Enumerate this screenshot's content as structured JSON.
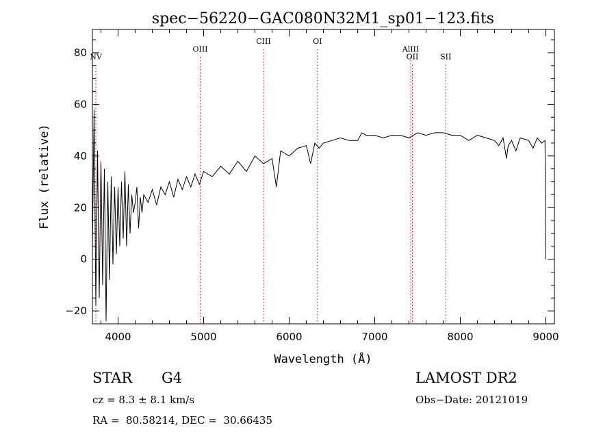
{
  "chart_data": {
    "type": "line",
    "title": "spec−56220−GAC080N32M1_sp01−123.fits",
    "xlabel": "Wavelength (Å)",
    "ylabel": "Flux (relative)",
    "xlim": [
      3700,
      9100
    ],
    "ylim": [
      -25,
      89
    ],
    "x_ticks": [
      4000,
      5000,
      6000,
      7000,
      8000,
      9000
    ],
    "y_ticks": [
      -20,
      0,
      20,
      40,
      60,
      80
    ],
    "x_tick_labels": [
      "4000",
      "5000",
      "6000",
      "7000",
      "8000",
      "9000"
    ],
    "y_tick_labels": [
      "−20",
      "0",
      "20",
      "40",
      "60",
      "80"
    ],
    "grid": false,
    "series_color": "#000000",
    "line_marker_color": "#cc0000",
    "series": [
      {
        "x": [
          3700,
          3720,
          3740,
          3760,
          3780,
          3800,
          3820,
          3840,
          3860,
          3880,
          3900,
          3920,
          3940,
          3960,
          3980,
          4000,
          4020,
          4040,
          4060,
          4080,
          4100,
          4120,
          4140,
          4160,
          4180,
          4200,
          4220,
          4240,
          4260,
          4280,
          4300,
          4350,
          4400,
          4450,
          4500,
          4550,
          4600,
          4650,
          4700,
          4750,
          4800,
          4850,
          4900,
          4950,
          5000,
          5100,
          5200,
          5300,
          5400,
          5500,
          5600,
          5700,
          5800,
          5850,
          5900,
          6000,
          6100,
          6200,
          6250,
          6300,
          6350,
          6400,
          6500,
          6600,
          6700,
          6800,
          6850,
          6900,
          7000,
          7100,
          7200,
          7300,
          7400,
          7500,
          7600,
          7700,
          7800,
          7900,
          8000,
          8100,
          8200,
          8300,
          8400,
          8450,
          8500,
          8540,
          8560,
          8600,
          8650,
          8700,
          8800,
          8850,
          8900,
          8950,
          8990,
          9000
        ],
        "y": [
          5,
          58,
          -18,
          42,
          -15,
          38,
          -10,
          35,
          -24,
          30,
          -8,
          32,
          -2,
          28,
          2,
          28,
          5,
          30,
          8,
          34,
          5,
          29,
          10,
          25,
          18,
          22,
          28,
          12,
          24,
          18,
          25,
          22,
          27,
          21,
          28,
          25,
          30,
          24,
          31,
          27,
          32,
          28,
          33,
          29,
          34,
          32,
          36,
          33,
          38,
          34,
          40,
          37,
          39,
          28,
          42,
          40,
          43,
          44,
          37,
          45,
          43,
          45,
          46,
          47,
          46,
          46,
          49,
          48,
          48,
          47,
          48,
          48,
          47,
          49,
          48,
          49,
          49,
          48,
          48,
          46,
          48,
          47,
          46,
          44,
          47,
          39,
          44,
          46,
          42,
          47,
          46,
          43,
          47,
          45,
          46,
          0
        ]
      }
    ],
    "spectral_lines": [
      {
        "label": "NV",
        "x": 3740,
        "label_y": 78.5
      },
      {
        "label": "OIII",
        "x": 4960,
        "label_y": 81.5
      },
      {
        "label": "CIII",
        "x": 5700,
        "label_y": 84.5
      },
      {
        "label": "OI",
        "x": 6330,
        "label_y": 84.5
      },
      {
        "label": "AlIII",
        "x": 7420,
        "label_y": 81.5
      },
      {
        "label": "OII",
        "x": 7440,
        "label_y": 78.5
      },
      {
        "label": "SII",
        "x": 7830,
        "label_y": 78.5
      }
    ]
  },
  "info": {
    "class_label": "STAR",
    "subclass": "G4",
    "survey": "LAMOST DR2",
    "cz": "cz = 8.3 ± 8.1 km/s",
    "obs_date": "Obs−Date: 20121019",
    "coords": "RA =  80.58214, DEC =  30.66435"
  }
}
